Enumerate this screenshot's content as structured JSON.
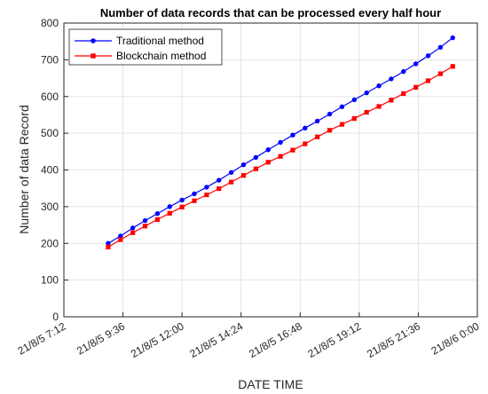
{
  "chart_data": {
    "type": "line",
    "title": "Number of data records that can be processed every half hour",
    "xlabel": "DATE TIME",
    "ylabel": "Number of data Record",
    "x_start": "2021-08-05T09:00",
    "x_step_minutes": 30,
    "xlim": [
      "2021-08-05T07:12",
      "2021-08-06T00:00"
    ],
    "ylim": [
      0,
      800
    ],
    "yticks": [
      0,
      100,
      200,
      300,
      400,
      500,
      600,
      700,
      800
    ],
    "xticks": [
      "21/8/5 7:12",
      "21/8/5 9:36",
      "21/8/5 12:00",
      "21/8/5 14:24",
      "21/8/5 16:48",
      "21/8/5 19:12",
      "21/8/5 21:36",
      "21/8/6 0:00"
    ],
    "grid": true,
    "legend_position": "top-left",
    "series": [
      {
        "name": "Traditional method",
        "color": "#0000ff",
        "marker": "circle",
        "values": [
          200,
          220,
          242,
          262,
          281,
          300,
          318,
          335,
          353,
          372,
          393,
          414,
          434,
          455,
          475,
          495,
          514,
          533,
          552,
          572,
          591,
          610,
          629,
          648,
          668,
          689,
          711,
          734,
          760
        ]
      },
      {
        "name": "Blockchain method",
        "color": "#ff0000",
        "marker": "square",
        "values": [
          190,
          210,
          229,
          247,
          265,
          282,
          299,
          316,
          332,
          349,
          367,
          385,
          403,
          421,
          437,
          454,
          471,
          490,
          508,
          524,
          540,
          557,
          573,
          590,
          608,
          625,
          643,
          662,
          682
        ]
      }
    ]
  }
}
